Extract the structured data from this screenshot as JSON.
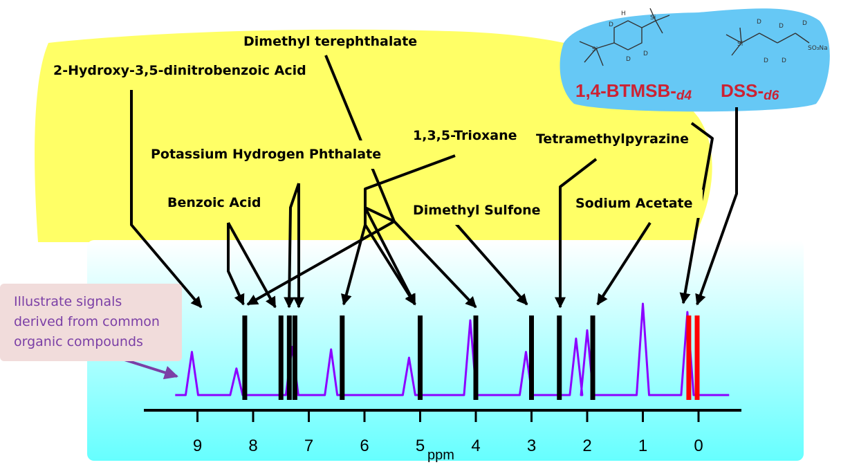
{
  "compounds": [
    {
      "name": "2-Hydroxy-3,5-dinitrobenzoic Acid"
    },
    {
      "name": "Dimethyl terephthalate"
    },
    {
      "name": "Potassium Hydrogen Phthalate"
    },
    {
      "name": "1,3,5-Trioxane"
    },
    {
      "name": "Tetramethylpyrazine"
    },
    {
      "name": "Benzoic Acid"
    },
    {
      "name": "Dimethyl Sulfone"
    },
    {
      "name": "Sodium Acetate"
    }
  ],
  "references": [
    {
      "name": "1,4-BTMSB-d4",
      "label": "1,4-BTMSB-",
      "sub": "d4"
    },
    {
      "name": "DSS-d6",
      "label": "DSS-",
      "sub": "d6"
    }
  ],
  "callout": {
    "lines": [
      "Illustrate signals",
      "derived from common",
      "organic compounds"
    ]
  },
  "axis": {
    "unit": "ppm",
    "ticks": [
      "9",
      "8",
      "7",
      "6",
      "5",
      "4",
      "3",
      "2",
      "1",
      "0"
    ],
    "range": [
      9.9,
      -0.8
    ],
    "reversed": true
  },
  "chart_data": {
    "type": "line",
    "xlabel": "ppm",
    "xlim": [
      9.9,
      -0.8
    ],
    "reference_signals_ppm": [
      8.15,
      7.5,
      7.35,
      7.25,
      6.4,
      5.0,
      4.0,
      3.0,
      2.5,
      1.9
    ],
    "red_signals_ppm": [
      0.15,
      0.0
    ],
    "spectrum_peaks": [
      {
        "ppm": 9.1,
        "height": 0.52
      },
      {
        "ppm": 8.3,
        "height": 0.32
      },
      {
        "ppm": 7.3,
        "height": 0.58
      },
      {
        "ppm": 6.6,
        "height": 0.55
      },
      {
        "ppm": 5.2,
        "height": 0.45
      },
      {
        "ppm": 4.1,
        "height": 0.9
      },
      {
        "ppm": 3.1,
        "height": 0.52
      },
      {
        "ppm": 2.2,
        "height": 0.68
      },
      {
        "ppm": 2.0,
        "height": 0.78
      },
      {
        "ppm": 1.0,
        "height": 1.1
      },
      {
        "ppm": 0.2,
        "height": 1.0
      }
    ]
  },
  "colors": {
    "yellow": "#ffff66",
    "blue_blob": "#66c8f5",
    "spectrum_bg_top": "#ffffff",
    "spectrum_bg_bottom": "#66ffff",
    "spectrum_line": "#8b00ff",
    "marker": "#000000",
    "reference_marker": "#ff0000",
    "reference_text": "#cc2233",
    "callout_text": "#7b3fa6"
  }
}
